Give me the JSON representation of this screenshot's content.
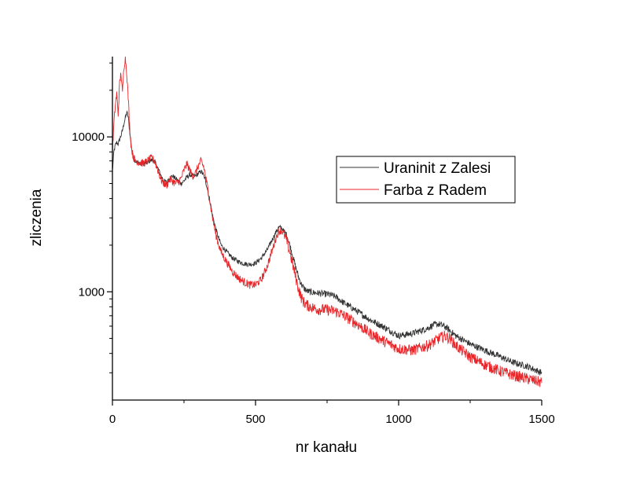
{
  "chart_data": {
    "type": "line",
    "xlabel": "nr kanału",
    "ylabel": "zliczenia",
    "xlim": [
      0,
      1500
    ],
    "ylim": [
      200,
      33000
    ],
    "yscale": "log",
    "xticks": [
      0,
      500,
      1000,
      1500
    ],
    "yticks": [
      1000,
      10000
    ],
    "grid": false,
    "legend_position": "upper-right",
    "series": [
      {
        "name": "Uraninit z Zalesi",
        "color": "#333333",
        "noise": 0.035,
        "x": [
          0,
          5,
          10,
          15,
          20,
          25,
          30,
          35,
          40,
          45,
          50,
          55,
          60,
          65,
          70,
          75,
          80,
          90,
          100,
          110,
          120,
          130,
          140,
          150,
          160,
          170,
          180,
          190,
          200,
          210,
          220,
          230,
          240,
          250,
          260,
          270,
          280,
          290,
          300,
          310,
          320,
          330,
          340,
          350,
          360,
          370,
          380,
          400,
          420,
          440,
          460,
          480,
          500,
          520,
          540,
          560,
          570,
          580,
          590,
          600,
          610,
          620,
          630,
          640,
          650,
          660,
          670,
          680,
          700,
          720,
          740,
          760,
          780,
          800,
          850,
          900,
          950,
          1000,
          1050,
          1100,
          1120,
          1140,
          1160,
          1180,
          1200,
          1250,
          1300,
          1350,
          1400,
          1450,
          1500
        ],
        "y": [
          6000,
          8000,
          8800,
          9200,
          9000,
          9600,
          10200,
          11000,
          12200,
          13200,
          14500,
          13500,
          11000,
          9000,
          7800,
          7200,
          7000,
          6800,
          6700,
          6700,
          6800,
          7000,
          7100,
          6800,
          6200,
          5600,
          5200,
          5100,
          5400,
          5600,
          5400,
          5200,
          5000,
          5200,
          5500,
          5700,
          5600,
          5600,
          5800,
          6000,
          5600,
          4800,
          3900,
          3100,
          2600,
          2250,
          2000,
          1800,
          1650,
          1570,
          1520,
          1500,
          1530,
          1650,
          1850,
          2200,
          2400,
          2600,
          2600,
          2450,
          2300,
          2000,
          1700,
          1450,
          1250,
          1120,
          1050,
          1010,
          990,
          980,
          970,
          960,
          930,
          870,
          760,
          660,
          590,
          520,
          540,
          580,
          610,
          620,
          600,
          560,
          520,
          460,
          420,
          385,
          350,
          330,
          300
        ]
      },
      {
        "name": "Farba z Radem",
        "color": "#e8262a",
        "noise": 0.06,
        "x": [
          0,
          5,
          10,
          15,
          20,
          25,
          30,
          35,
          40,
          45,
          50,
          55,
          60,
          65,
          70,
          75,
          80,
          90,
          100,
          110,
          120,
          130,
          140,
          150,
          160,
          170,
          180,
          190,
          200,
          210,
          220,
          230,
          240,
          250,
          260,
          270,
          280,
          290,
          300,
          310,
          320,
          330,
          340,
          350,
          360,
          370,
          380,
          400,
          420,
          440,
          460,
          480,
          500,
          520,
          540,
          560,
          570,
          580,
          590,
          600,
          610,
          620,
          630,
          640,
          650,
          660,
          670,
          680,
          700,
          720,
          740,
          760,
          780,
          800,
          850,
          900,
          950,
          1000,
          1050,
          1100,
          1120,
          1140,
          1160,
          1180,
          1200,
          1250,
          1300,
          1350,
          1400,
          1450,
          1500
        ],
        "y": [
          8000,
          12000,
          16000,
          19000,
          14000,
          22000,
          26000,
          19000,
          28000,
          33000,
          26000,
          18000,
          12000,
          9000,
          7800,
          7300,
          7100,
          6900,
          6800,
          6800,
          6900,
          7200,
          7300,
          6800,
          6000,
          5300,
          5000,
          4900,
          5300,
          5200,
          5000,
          5100,
          5400,
          6100,
          6700,
          6100,
          5600,
          5800,
          6500,
          7000,
          6300,
          5000,
          3900,
          3000,
          2400,
          2050,
          1800,
          1550,
          1350,
          1230,
          1160,
          1110,
          1110,
          1200,
          1450,
          1900,
          2200,
          2450,
          2500,
          2350,
          2100,
          1800,
          1500,
          1250,
          1050,
          920,
          850,
          820,
          790,
          770,
          770,
          760,
          750,
          720,
          630,
          540,
          480,
          430,
          420,
          450,
          470,
          500,
          520,
          500,
          450,
          380,
          340,
          310,
          290,
          275,
          260
        ]
      }
    ]
  }
}
